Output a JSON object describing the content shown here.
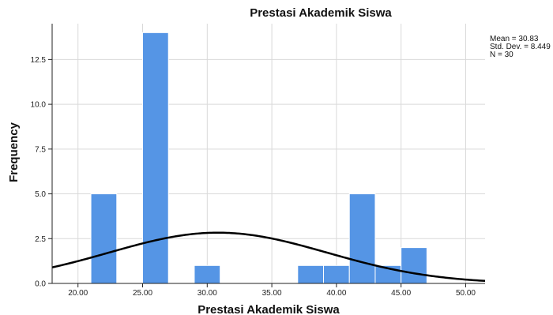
{
  "chart_data": {
    "type": "bar",
    "title": "Prestasi Akademik Siswa",
    "xlabel": "Prestasi Akademik Siswa",
    "ylabel": "Frequency",
    "xlim": [
      18.0,
      51.5
    ],
    "ylim": [
      0,
      14.5
    ],
    "x_ticks": [
      "20.00",
      "25.00",
      "30.00",
      "35.00",
      "40.00",
      "45.00",
      "50.00"
    ],
    "x_tick_values": [
      20,
      25,
      30,
      35,
      40,
      45,
      50
    ],
    "y_ticks": [
      "0.0",
      "2.5",
      "5.0",
      "7.5",
      "10.0",
      "12.5"
    ],
    "y_tick_values": [
      0,
      2.5,
      5,
      7.5,
      10,
      12.5
    ],
    "bin_width": 2,
    "bars": [
      {
        "start": 21,
        "end": 23,
        "value": 5
      },
      {
        "start": 25,
        "end": 27,
        "value": 14
      },
      {
        "start": 29,
        "end": 31,
        "value": 1
      },
      {
        "start": 37,
        "end": 39,
        "value": 1
      },
      {
        "start": 39,
        "end": 41,
        "value": 1
      },
      {
        "start": 41,
        "end": 43,
        "value": 5
      },
      {
        "start": 43,
        "end": 45,
        "value": 1
      },
      {
        "start": 45,
        "end": 47,
        "value": 2
      }
    ],
    "normal_curve": {
      "mean": 30.83,
      "std_dev": 8.449,
      "n": 30
    },
    "stats": {
      "mean_label": "Mean = 30.83",
      "std_label": "Std. Dev. = 8.449",
      "n_label": "N = 30"
    },
    "grid": true,
    "colors": {
      "bar_fill": "#5595e5",
      "bar_stroke": "#ffffff",
      "grid": "#d9d9d9",
      "axis": "#222222",
      "curve": "#000000"
    }
  }
}
